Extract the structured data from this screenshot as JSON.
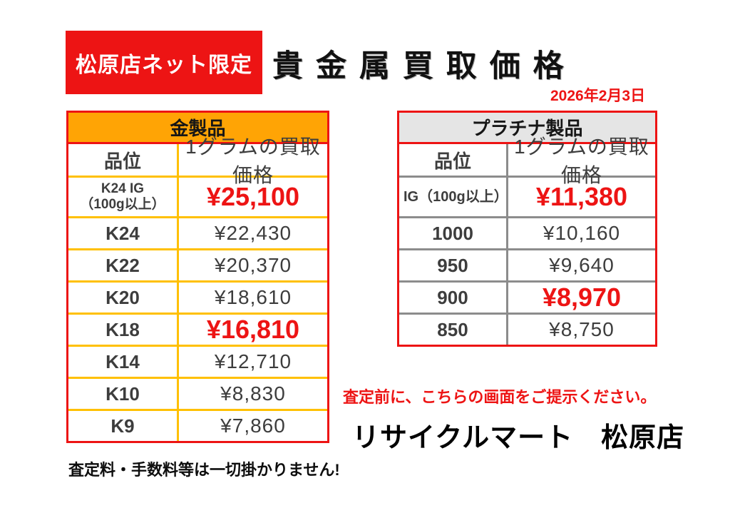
{
  "page": {
    "badge": "松原店ネット限定",
    "title": "貴 金 属 買 取 価 格",
    "date": "2026年2月3日",
    "note_left": "査定料・手数料等は一切掛かりません!",
    "note_right": "査定前に、こちらの画面をご提示ください。",
    "store_name": "リサイクルマート　松原店"
  },
  "tables": {
    "gold": {
      "title": "金製品",
      "columns": [
        "品位",
        "1グラムの買取価格"
      ],
      "rows": [
        {
          "grade": "K24 IG",
          "grade_note": "（100g以上）",
          "price": "¥25,100",
          "highlight": true
        },
        {
          "grade": "K24",
          "price": "¥22,430",
          "highlight": false
        },
        {
          "grade": "K22",
          "price": "¥20,370",
          "highlight": false
        },
        {
          "grade": "K20",
          "price": "¥18,610",
          "highlight": false
        },
        {
          "grade": "K18",
          "price": "¥16,810",
          "highlight": true
        },
        {
          "grade": "K14",
          "price": "¥12,710",
          "highlight": false
        },
        {
          "grade": "K10",
          "price": "¥8,830",
          "highlight": false
        },
        {
          "grade": "K9",
          "price": "¥7,860",
          "highlight": false
        }
      ]
    },
    "platinum": {
      "title": "プラチナ製品",
      "columns": [
        "品位",
        "1グラムの買取価格"
      ],
      "rows": [
        {
          "grade": "IG（100g以上）",
          "price": "¥11,380",
          "highlight": true
        },
        {
          "grade": "1000",
          "price": "¥10,160",
          "highlight": false
        },
        {
          "grade": "950",
          "price": "¥9,640",
          "highlight": false
        },
        {
          "grade": "900",
          "price": "¥8,970",
          "highlight": true
        },
        {
          "grade": "850",
          "price": "¥8,750",
          "highlight": false
        }
      ]
    }
  },
  "colors": {
    "accent_red": "#ed1414",
    "gold_header_bg": "#ffa405",
    "gold_inner_border": "#ffc000",
    "platinum_header_bg": "#e5e5e5",
    "platinum_inner_border": "#8c8c8c",
    "value_text": "#3d3d3d"
  }
}
